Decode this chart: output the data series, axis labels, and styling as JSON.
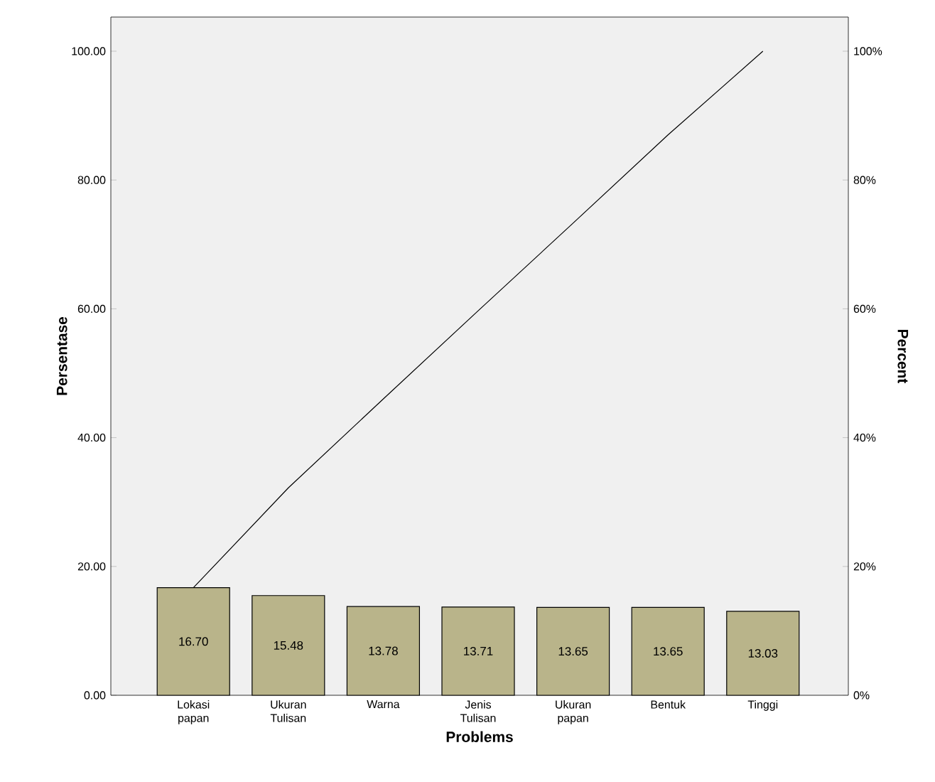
{
  "chart_data": {
    "type": "bar",
    "xlabel": "Problems",
    "ylabel": "Persentase",
    "y2label": "Percent",
    "categories": [
      "Lokasi papan",
      "Ukuran Tulisan",
      "Warna",
      "Jenis Tulisan",
      "Ukuran papan",
      "Bentuk",
      "Tinggi"
    ],
    "series": [
      {
        "color": "#b9b48a",
        "values": [
          16.7,
          15.48,
          13.78,
          13.71,
          13.65,
          13.65,
          13.03
        ],
        "value_labels": [
          "16.70",
          "15.48",
          "13.78",
          "13.71",
          "13.65",
          "13.65",
          "13.03"
        ]
      },
      {
        "type": "line",
        "axis": "y2",
        "color": "#000000",
        "values": [
          16.7,
          32.2,
          46.0,
          59.7,
          73.3,
          87.0,
          100.0
        ]
      }
    ],
    "ylim": [
      0,
      105.3
    ],
    "yticks": [
      {
        "value": 0,
        "label": "0.00"
      },
      {
        "value": 20,
        "label": "20.00"
      },
      {
        "value": 40,
        "label": "40.00"
      },
      {
        "value": 60,
        "label": "60.00"
      },
      {
        "value": 80,
        "label": "80.00"
      },
      {
        "value": 100,
        "label": "100.00"
      }
    ],
    "y2lim": [
      0,
      105.3
    ],
    "y2ticks": [
      {
        "value": 0,
        "label": "0%"
      },
      {
        "value": 20,
        "label": "20%"
      },
      {
        "value": 40,
        "label": "40%"
      },
      {
        "value": 60,
        "label": "60%"
      },
      {
        "value": 80,
        "label": "80%"
      },
      {
        "value": 100,
        "label": "100%"
      }
    ],
    "grid": false
  }
}
